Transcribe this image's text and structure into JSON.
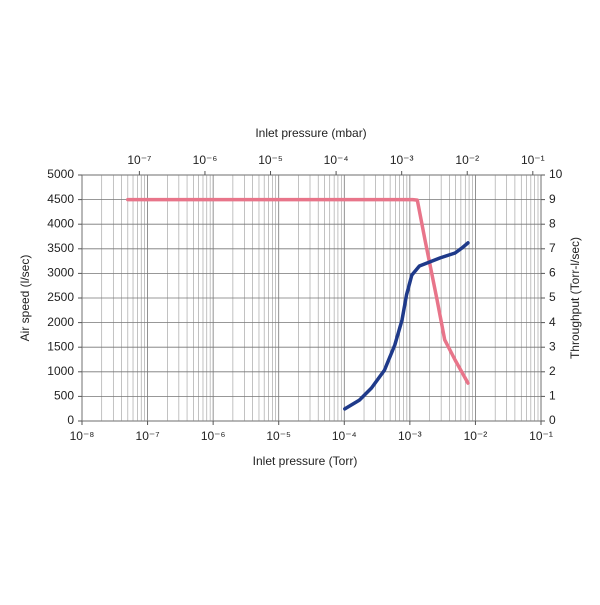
{
  "chart_data": {
    "type": "line",
    "xlabel": "Inlet pressure (Torr)",
    "x2label": "Inlet pressure (mbar)",
    "ylabel": "Air speed (l/sec)",
    "y2label": "Throughput (Torr-l/sec)",
    "log_x": true,
    "grid": true,
    "minor_grid": true,
    "xlim": [
      1e-08,
      0.1
    ],
    "xticks": [
      {
        "value": 1e-08,
        "label": "10⁻⁸"
      },
      {
        "value": 1e-07,
        "label": "10⁻⁷"
      },
      {
        "value": 1e-06,
        "label": "10⁻⁶"
      },
      {
        "value": 1e-05,
        "label": "10⁻⁵"
      },
      {
        "value": 0.0001,
        "label": "10⁻⁴"
      },
      {
        "value": 0.001,
        "label": "10⁻³"
      },
      {
        "value": 0.01,
        "label": "10⁻²"
      },
      {
        "value": 0.1,
        "label": "10⁻¹"
      }
    ],
    "x2lim": [
      1.3332e-08,
      0.13332
    ],
    "x2ticks": [
      {
        "value": 1e-07,
        "label": "10⁻⁷"
      },
      {
        "value": 1e-06,
        "label": "10⁻⁶"
      },
      {
        "value": 1e-05,
        "label": "10⁻⁵"
      },
      {
        "value": 0.0001,
        "label": "10⁻⁴"
      },
      {
        "value": 0.001,
        "label": "10⁻³"
      },
      {
        "value": 0.01,
        "label": "10⁻²"
      },
      {
        "value": 0.1,
        "label": "10⁻¹"
      }
    ],
    "ylim": [
      0,
      5000
    ],
    "yticks": [
      0,
      500,
      1000,
      1500,
      2000,
      2500,
      3000,
      3500,
      4000,
      4500,
      5000
    ],
    "y2lim": [
      0,
      10
    ],
    "y2ticks": [
      0,
      1,
      2,
      3,
      4,
      5,
      6,
      7,
      8,
      9,
      10
    ],
    "series": [
      {
        "color": "#e8758a",
        "axis": "y",
        "x": [
          5e-08,
          1e-06,
          0.0001,
          0.0011,
          0.0013,
          0.0017,
          0.0026,
          0.0034,
          0.0049,
          0.0077
        ],
        "values": [
          4500,
          4500,
          4500,
          4500,
          4490,
          3680,
          2460,
          1650,
          1240,
          770
        ]
      },
      {
        "color": "#1f3a8a",
        "axis": "y2",
        "x": [
          0.000102,
          0.00017,
          0.00026,
          0.00041,
          0.00059,
          0.00076,
          0.00089,
          0.00107,
          0.0014,
          0.0029,
          0.0049,
          0.0062,
          0.0077
        ],
        "values": [
          0.49,
          0.85,
          1.34,
          2.07,
          3.09,
          4.1,
          5.12,
          5.93,
          6.3,
          6.63,
          6.83,
          7.03,
          7.24
        ]
      }
    ]
  }
}
